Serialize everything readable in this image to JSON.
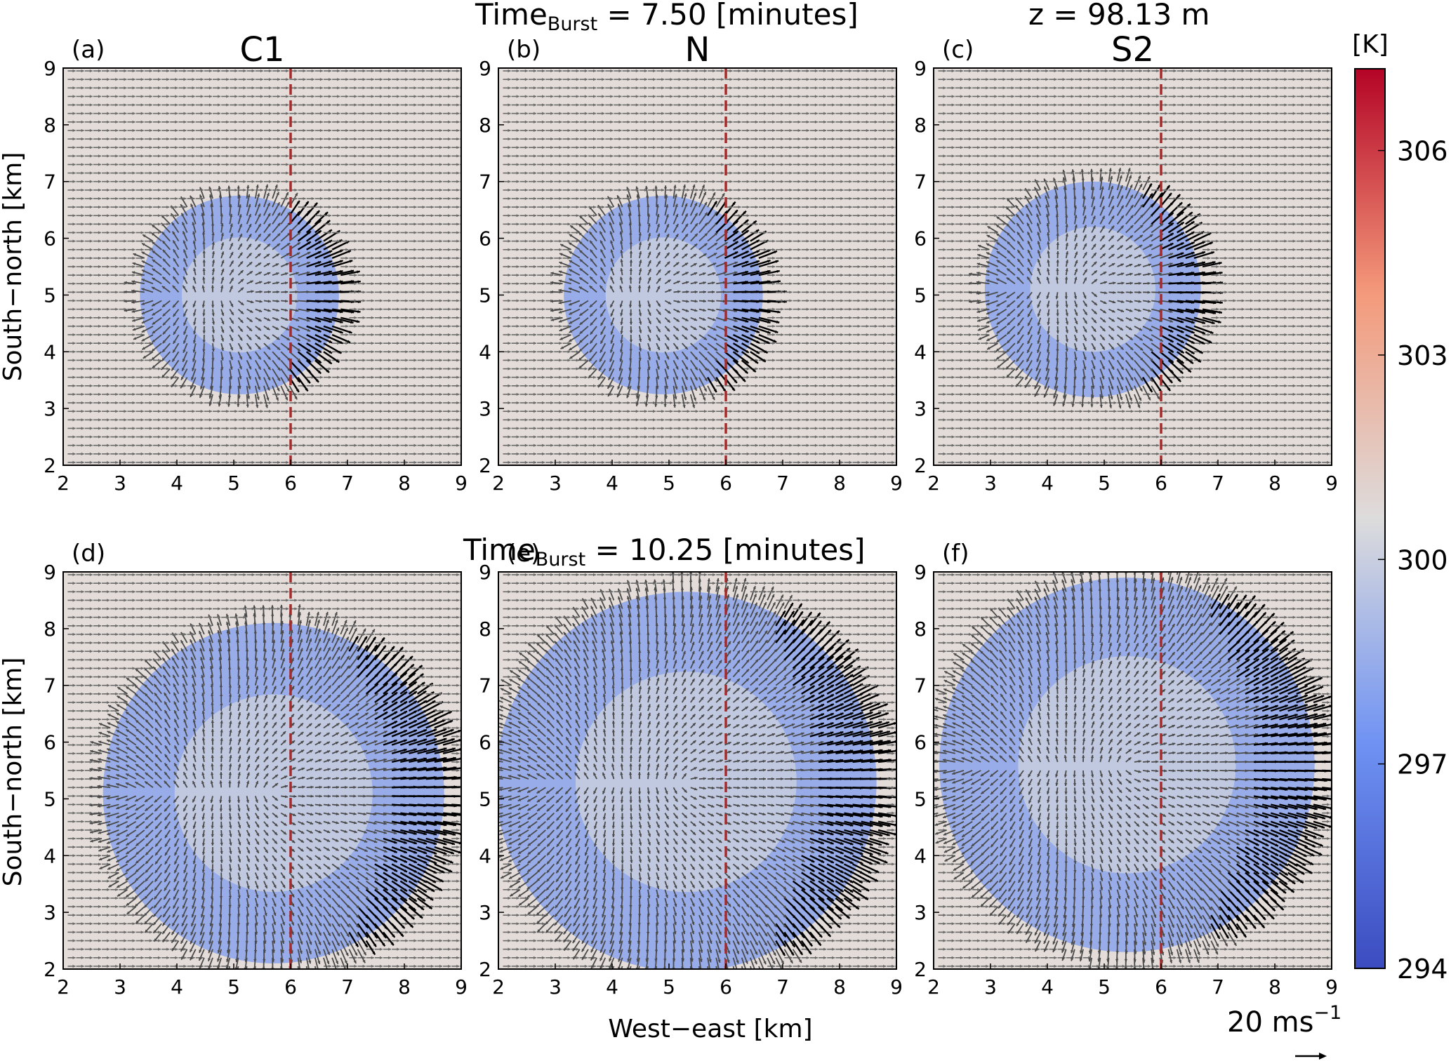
{
  "header": {
    "time1_prefix": "Time",
    "time1_sub": "Burst",
    "time1_value": " = 7.50 [minutes]",
    "z_label": "z = 98.13 m",
    "time2_prefix": "Time",
    "time2_sub": "Burst",
    "time2_value": " = 10.25 [minutes]"
  },
  "axes": {
    "xlabel": "West−east [km]",
    "ylabel": "South−north [km]",
    "ticks": [
      "2",
      "3",
      "4",
      "5",
      "6",
      "7",
      "8",
      "9"
    ]
  },
  "colorbar": {
    "unit": "[K]",
    "ticks": [
      "294",
      "297",
      "300",
      "303",
      "306"
    ],
    "colors": [
      "#3b4cc0",
      "#6f92f3",
      "#dddcdc",
      "#f49a7b",
      "#b40426"
    ]
  },
  "quiver_key": {
    "label": "20 ms",
    "exp": "−1"
  },
  "chart_data": [
    {
      "type": "heatmap",
      "panel": "(a)",
      "title": "C1",
      "xlim": [
        2,
        9
      ],
      "ylim": [
        2,
        9
      ],
      "ref_x": 6,
      "ring_center": [
        5.1,
        5.0
      ],
      "ring_radius": 1.75,
      "max_wind_direction": "east"
    },
    {
      "type": "heatmap",
      "panel": "(b)",
      "title": "N",
      "xlim": [
        2,
        9
      ],
      "ylim": [
        2,
        9
      ],
      "ref_x": 6,
      "ring_center": [
        4.9,
        5.0
      ],
      "ring_radius": 1.75,
      "max_wind_direction": "east"
    },
    {
      "type": "heatmap",
      "panel": "(c)",
      "title": "S2",
      "xlim": [
        2,
        9
      ],
      "ylim": [
        2,
        9
      ],
      "ref_x": 6,
      "ring_center": [
        4.8,
        5.1
      ],
      "ring_radius": 1.9,
      "max_wind_direction": "east"
    },
    {
      "type": "heatmap",
      "panel": "(d)",
      "title": "",
      "xlim": [
        2,
        9
      ],
      "ylim": [
        2,
        9
      ],
      "ref_x": 6,
      "ring_center": [
        5.7,
        5.1
      ],
      "ring_radius": 3.0,
      "max_wind_direction": "east"
    },
    {
      "type": "heatmap",
      "panel": "(e)",
      "title": "",
      "xlim": [
        2,
        9
      ],
      "ylim": [
        2,
        9
      ],
      "ref_x": 6,
      "ring_center": [
        5.3,
        5.3
      ],
      "ring_radius": 3.35,
      "max_wind_direction": "east"
    },
    {
      "type": "heatmap",
      "panel": "(f)",
      "title": "",
      "xlim": [
        2,
        9
      ],
      "ylim": [
        2,
        9
      ],
      "ref_x": 6,
      "ring_center": [
        5.4,
        5.6
      ],
      "ring_radius": 3.3,
      "max_wind_direction": "east"
    }
  ]
}
